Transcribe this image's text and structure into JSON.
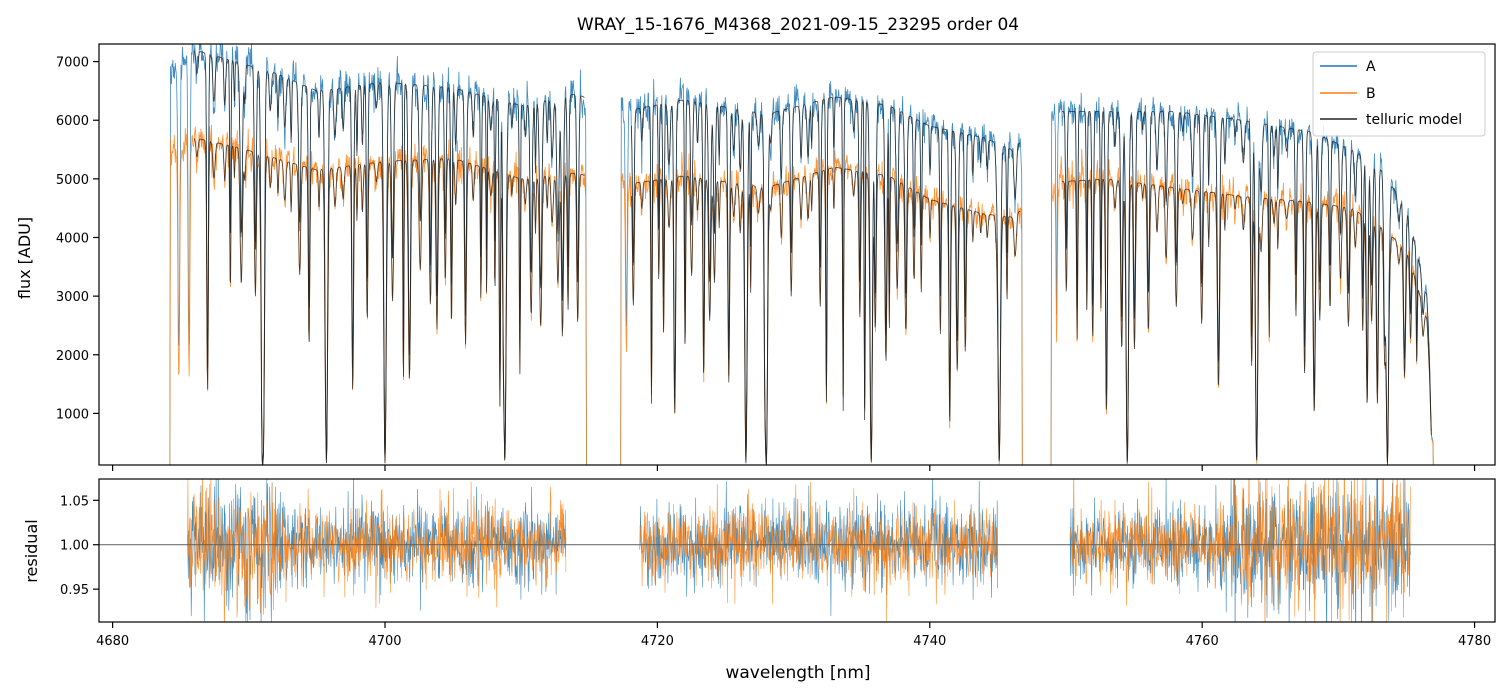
{
  "figure": {
    "title": "WRAY_15-1676_M4368_2021-09-15_23295  order 04"
  },
  "colors": {
    "A": "#1f77b4",
    "B": "#ff7f0e",
    "telluric": "#222222",
    "reference_line": "#555555"
  },
  "chart_data": [
    {
      "type": "line",
      "panel": "flux",
      "title": "WRAY_15-1676_M4368_2021-09-15_23295  order 04",
      "xlabel": "",
      "ylabel": "flux [ADU]",
      "xlim": [
        4679.0,
        4781.5
      ],
      "ylim": [
        120,
        7300
      ],
      "x_ticks": [
        4680,
        4700,
        4720,
        4740,
        4760,
        4780
      ],
      "x_ticklabels_visible": false,
      "y_ticks": [
        1000,
        2000,
        3000,
        4000,
        5000,
        6000,
        7000
      ],
      "y_ticklabels": [
        "1000",
        "2000",
        "3000",
        "4000",
        "5000",
        "6000",
        "7000"
      ],
      "grid": false,
      "legend": {
        "placement": "top-right",
        "entries": [
          "A",
          "B",
          "telluric model"
        ]
      },
      "data_segments_nm": [
        [
          4684.2,
          4714.8
        ],
        [
          4717.3,
          4746.8
        ],
        [
          4748.9,
          4777.0
        ]
      ],
      "continuum_A": {
        "x": [
          4684.5,
          4686,
          4689,
          4692,
          4695,
          4700,
          4705,
          4710,
          4714,
          4717.5,
          4722,
          4728,
          4733,
          4737,
          4740,
          4744,
          4746,
          4749.5,
          4753,
          4758,
          4763,
          4768,
          4771,
          4773,
          4775,
          4776.5,
          4777
        ],
        "y": [
          6900,
          7200,
          7000,
          6800,
          6500,
          6650,
          6550,
          6250,
          6450,
          6150,
          6350,
          6100,
          6400,
          6250,
          5900,
          5700,
          5500,
          6150,
          6150,
          6150,
          6000,
          5800,
          5500,
          5200,
          4500,
          3000,
          300
        ]
      },
      "continuum_B": {
        "x": [
          4684.5,
          4686,
          4689,
          4692,
          4695,
          4700,
          4705,
          4710,
          4714,
          4717.5,
          4722,
          4728,
          4733,
          4737,
          4740,
          4744,
          4746,
          4749.5,
          4753,
          4758,
          4763,
          4768,
          4771,
          4773,
          4775,
          4776.5,
          4777
        ],
        "y": [
          5500,
          5700,
          5550,
          5350,
          5150,
          5300,
          5350,
          5000,
          5100,
          4900,
          5050,
          4850,
          5200,
          5050,
          4650,
          4400,
          4350,
          4950,
          5000,
          4850,
          4700,
          4600,
          4500,
          4200,
          3800,
          2600,
          300
        ]
      },
      "deep_lines_nm": [
        4691.0,
        4695.7,
        4700.0,
        4708.8,
        4726.5,
        4728.0,
        4735.7,
        4745.1,
        4754.5,
        4764.0,
        4773.6
      ],
      "series": [
        {
          "name": "A"
        },
        {
          "name": "B"
        },
        {
          "name": "telluric model"
        }
      ]
    },
    {
      "type": "line",
      "panel": "residual",
      "xlabel": "wavelength [nm]",
      "ylabel": "residual",
      "xlim": [
        4679.0,
        4781.5
      ],
      "ylim": [
        0.913,
        1.074
      ],
      "x_ticks": [
        4680,
        4700,
        4720,
        4740,
        4760,
        4780
      ],
      "x_ticklabels": [
        "4680",
        "4700",
        "4720",
        "4740",
        "4760",
        "4780"
      ],
      "y_ticks": [
        0.95,
        1.0,
        1.05
      ],
      "y_ticklabels": [
        "0.95",
        "1.00",
        "1.05"
      ],
      "reference_y": 1.0,
      "grid": false,
      "residual_segments_nm": [
        [
          4685.5,
          4713.3
        ],
        [
          4718.7,
          4745.0
        ],
        [
          4750.3,
          4775.3
        ]
      ],
      "noise_scale": 0.022,
      "series": [
        {
          "name": "A"
        },
        {
          "name": "B"
        }
      ]
    }
  ]
}
